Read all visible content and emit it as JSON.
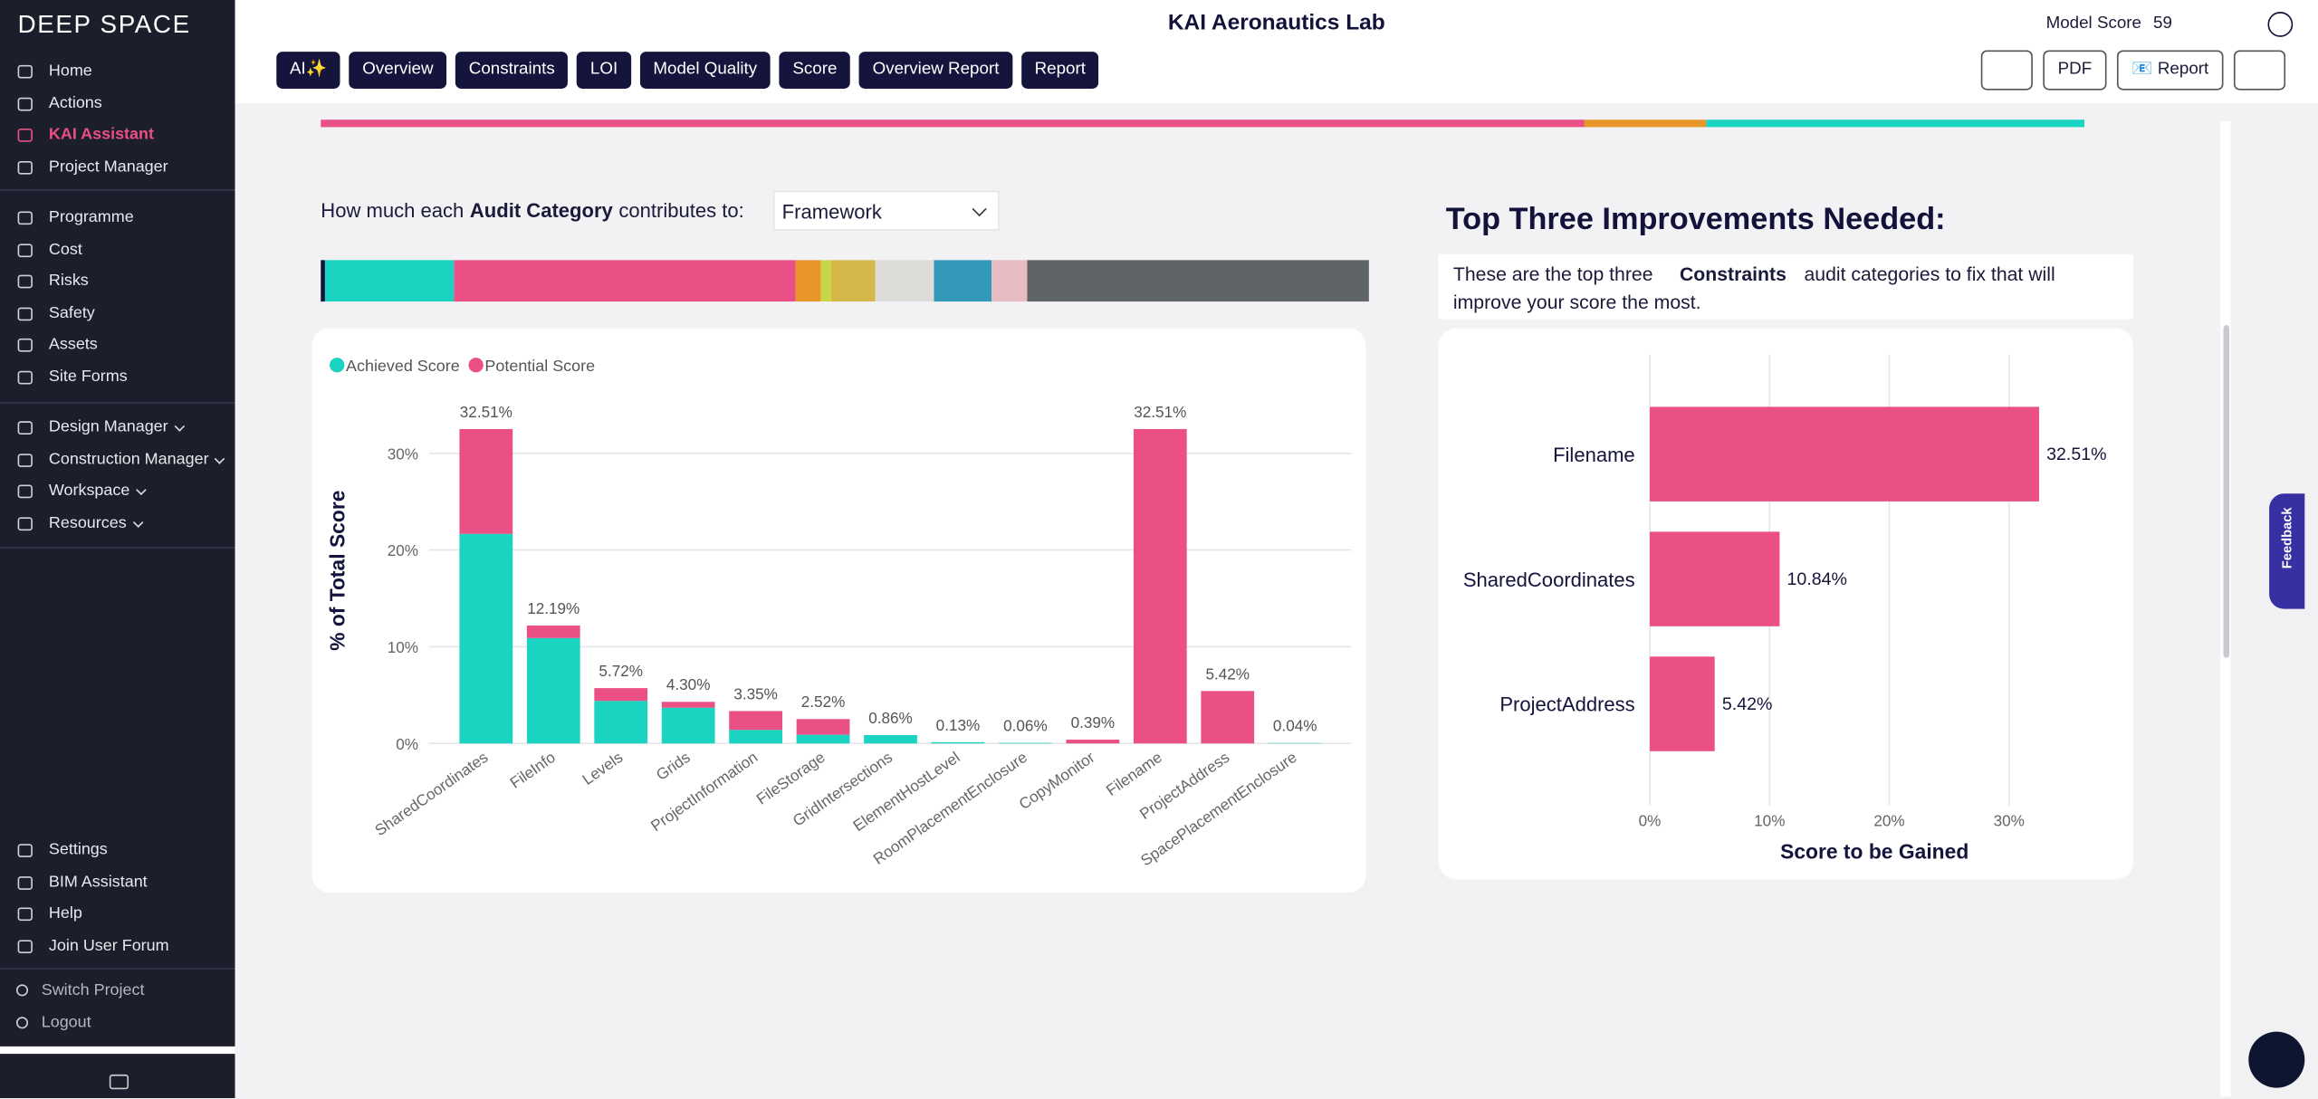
{
  "sidebar": {
    "logo": "DEEP SPACE",
    "main": [
      "Home",
      "Actions",
      "KAI Assistant",
      "Project Manager"
    ],
    "modules": [
      "Programme",
      "Cost",
      "Risks",
      "Safety",
      "Assets",
      "Site Forms"
    ],
    "managers": [
      "Design Manager",
      "Construction Manager",
      "Workspace",
      "Resources"
    ],
    "support": [
      "Settings",
      "BIM Assistant",
      "Help",
      "Join User Forum"
    ],
    "account": [
      "Switch Project",
      "Logout"
    ]
  },
  "header": {
    "title": "KAI Aeronautics Lab",
    "model_score_label": "Model Score",
    "model_score": 59
  },
  "toolbar": {
    "tabs": [
      "AI✨",
      "Overview",
      "Constraints",
      "LOI",
      "Model Quality",
      "Score",
      "Overview Report",
      "Report"
    ],
    "actions": [
      "PDF",
      "📧 Report"
    ]
  },
  "section": {
    "prompt_before": "How much each",
    "prompt_bold": "Audit Category",
    "prompt_after": "contributes to:",
    "dropdown": "Framework"
  },
  "improvements": {
    "title": "Top Three Improvements Needed:",
    "text_before": "These are the top three",
    "text_bold": "Constraints",
    "text_after": "audit categories to fix that will improve your score the most."
  },
  "feedback": "Feedback",
  "chart_data": [
    {
      "type": "strip",
      "values": [
        71.63,
        6.9,
        21.44
      ],
      "colors": [
        "#ea4f86",
        "#e8952a",
        "#1ad3c0"
      ]
    },
    {
      "type": "strip",
      "values": [
        0.4,
        12.3,
        32.6,
        2.4,
        1.0,
        4.2,
        5.6,
        5.5,
        3.4,
        32.6
      ],
      "colors": [
        "#12123a",
        "#1ad3c0",
        "#ea4f86",
        "#e8952a",
        "#c9d64a",
        "#d6b84a",
        "#dedcd8",
        "#3399b8",
        "#e6bcc0",
        "#5f6566"
      ]
    },
    {
      "type": "stacked-bar",
      "legend": true,
      "ylabel": "% of Total Score",
      "categories": [
        "SharedCoordinates",
        "FileInfo",
        "Levels",
        "Grids",
        "ProjectInformation",
        "FileStorage",
        "GridIntersections",
        "ElementHostLevel",
        "RoomPlacementEnclosure",
        "CopyMonitor",
        "Filename",
        "ProjectAddress",
        "SpacePlacementEnclosure"
      ],
      "series": [
        {
          "name": "Achieved Score",
          "color": "#1ad3c0",
          "values": [
            21.67,
            10.9,
            4.4,
            3.7,
            1.4,
            0.9,
            0.86,
            0.13,
            0.06,
            0,
            0,
            0,
            0.04
          ]
        },
        {
          "name": "Potential Score",
          "color": "#ea4f86",
          "values": [
            10.84,
            1.29,
            1.32,
            0.6,
            1.95,
            1.62,
            0,
            0,
            0,
            0.39,
            32.51,
            5.42,
            0
          ]
        }
      ],
      "value_labels": [
        "32.51%",
        "12.19%",
        "5.72%",
        "4.30%",
        "3.35%",
        "2.52%",
        "0.86%",
        "0.13%",
        "0.06%",
        "0.39%",
        "32.51%",
        "5.42%",
        "0.04%"
      ],
      "ylim": [
        0,
        35
      ],
      "yticks": [
        {
          "value": 0,
          "label": "0%"
        },
        {
          "value": 10,
          "label": "10%"
        },
        {
          "value": 20,
          "label": "20%"
        },
        {
          "value": 30,
          "label": "30%"
        }
      ],
      "grid": true
    },
    {
      "type": "hbar",
      "xlabel": "Score to be Gained",
      "categories": [
        "Filename",
        "SharedCoordinates",
        "ProjectAddress"
      ],
      "values": [
        32.51,
        10.84,
        5.42
      ],
      "value_labels": [
        "32.51%",
        "10.84%",
        "5.42%"
      ],
      "color": "#ea4f86",
      "xlim": [
        0,
        39
      ],
      "xticks": [
        {
          "value": 0,
          "label": "0%"
        },
        {
          "value": 10,
          "label": "10%"
        },
        {
          "value": 20,
          "label": "20%"
        },
        {
          "value": 30,
          "label": "30%"
        }
      ],
      "grid": true
    }
  ]
}
